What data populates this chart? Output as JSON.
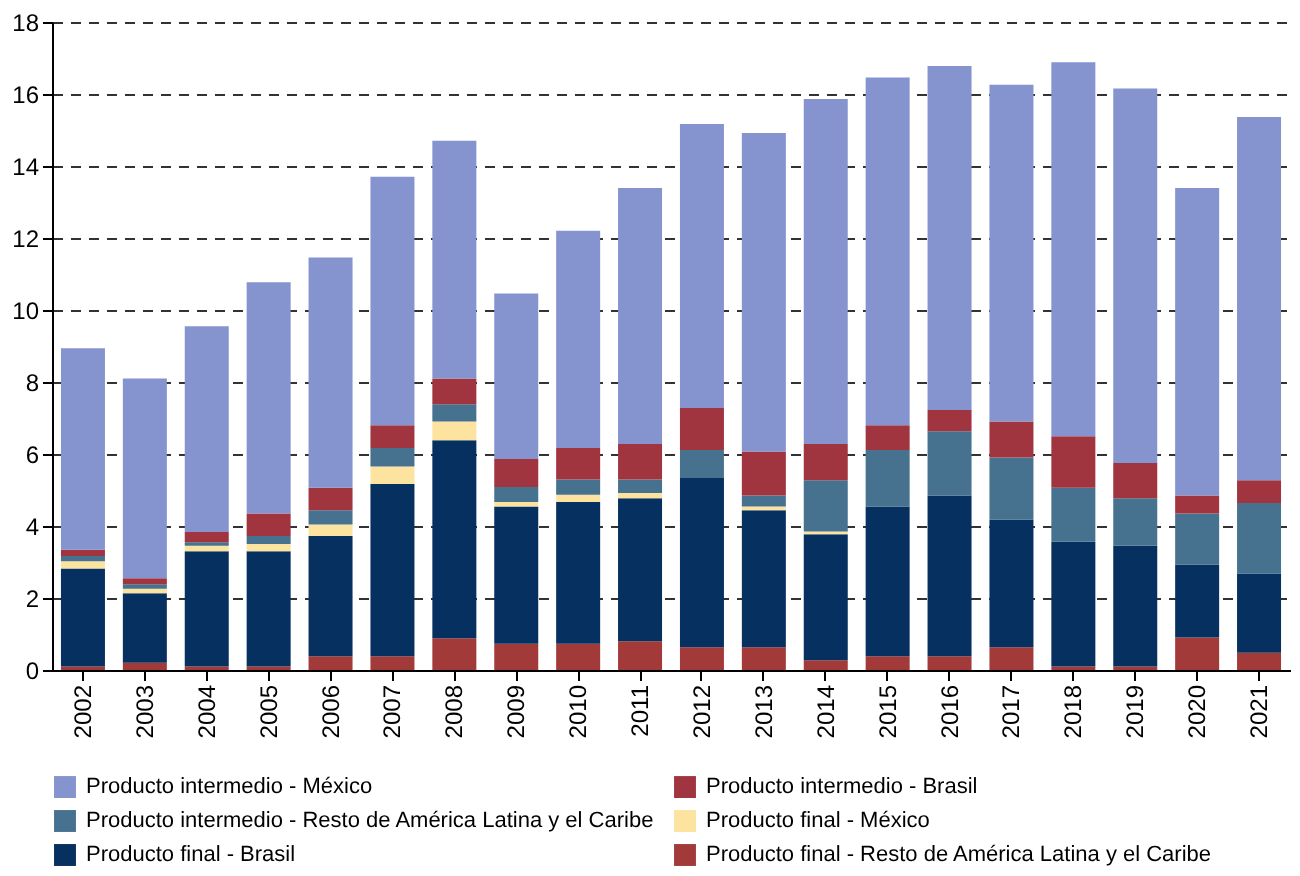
{
  "chart_data": {
    "type": "bar",
    "stacked": true,
    "categories": [
      "2002",
      "2003",
      "2004",
      "2005",
      "2006",
      "2007",
      "2008",
      "2009",
      "2010",
      "2011",
      "2012",
      "2013",
      "2014",
      "2015",
      "2016",
      "2017",
      "2018",
      "2019",
      "2020",
      "2021"
    ],
    "series": [
      {
        "name": "Producto final - Resto de América Latina y el Caribe",
        "color": "#a33a3a",
        "values": [
          0.1,
          0.2,
          0.1,
          0.1,
          0.38,
          0.38,
          0.88,
          0.73,
          0.73,
          0.8,
          0.63,
          0.63,
          0.27,
          0.38,
          0.38,
          0.63,
          0.1,
          0.1,
          0.9,
          0.48
        ]
      },
      {
        "name": "Producto final - Brasil",
        "color": "#05305f",
        "values": [
          2.72,
          1.93,
          3.2,
          3.2,
          3.34,
          4.79,
          5.5,
          3.81,
          3.94,
          3.97,
          4.7,
          3.81,
          3.5,
          4.16,
          4.47,
          3.55,
          3.46,
          3.35,
          2.03,
          2.2
        ]
      },
      {
        "name": "Producto final - México",
        "color": "#fde3a0",
        "values": [
          0.2,
          0.13,
          0.15,
          0.2,
          0.32,
          0.48,
          0.52,
          0.13,
          0.2,
          0.15,
          0,
          0.1,
          0.08,
          0,
          0,
          0,
          0,
          0,
          0,
          0
        ]
      },
      {
        "name": "Producto intermedio - Resto de América Latina y el Caribe",
        "color": "#46728f",
        "values": [
          0.15,
          0.12,
          0.1,
          0.22,
          0.4,
          0.52,
          0.48,
          0.41,
          0.42,
          0.37,
          0.78,
          0.31,
          1.42,
          1.57,
          1.78,
          1.72,
          1.5,
          1.32,
          1.42,
          1.96
        ]
      },
      {
        "name": "Producto intermedio - Brasil",
        "color": "#a03540",
        "values": [
          0.17,
          0.17,
          0.28,
          0.63,
          0.62,
          0.63,
          0.72,
          0.78,
          0.88,
          0.99,
          1.17,
          1.22,
          1.01,
          0.69,
          0.59,
          1.0,
          1.43,
          0.98,
          0.5,
          0.63
        ]
      },
      {
        "name": "Producto intermedio - México",
        "color": "#8593cf",
        "values": [
          5.6,
          5.55,
          5.72,
          6.42,
          6.4,
          6.9,
          6.6,
          4.6,
          6.03,
          7.11,
          7.89,
          8.85,
          9.58,
          9.66,
          9.56,
          9.36,
          10.39,
          10.4,
          8.54,
          10.09
        ]
      }
    ],
    "ylim": [
      0,
      18
    ],
    "yticks": [
      0,
      2,
      4,
      6,
      8,
      10,
      12,
      14,
      16,
      18
    ],
    "grid": "y",
    "legend": "bottom"
  }
}
